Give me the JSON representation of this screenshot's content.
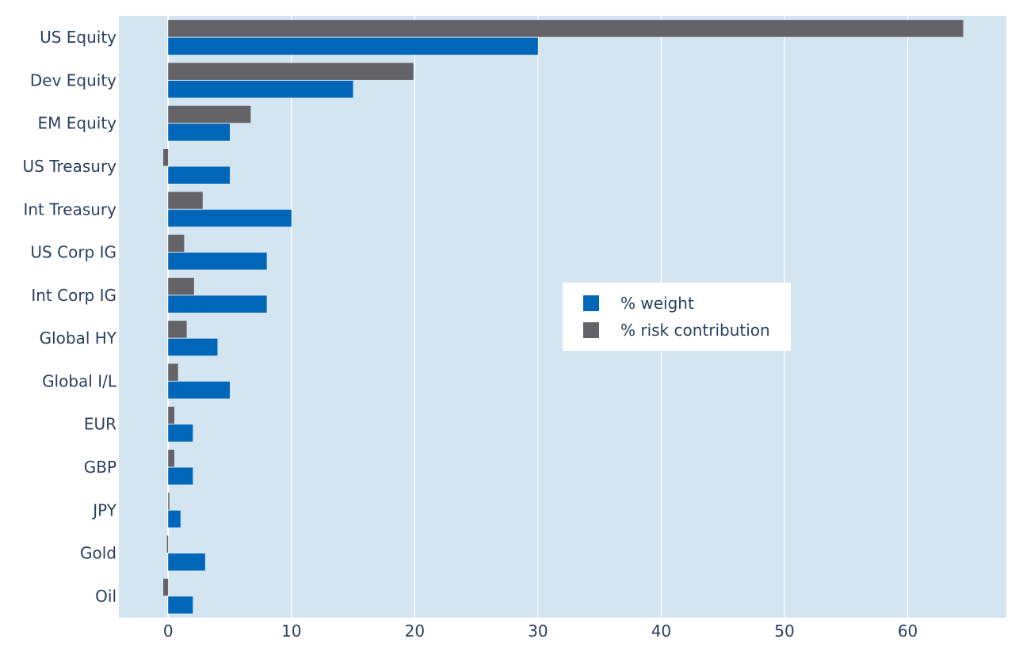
{
  "chart_data": {
    "type": "bar",
    "orientation": "horizontal",
    "categories": [
      "US Equity",
      "Dev Equity",
      "EM Equity",
      "US Treasury",
      "Int Treasury",
      "US Corp IG",
      "Int Corp IG",
      "Global HY",
      "Global I/L",
      "EUR",
      "GBP",
      "JPY",
      "Gold",
      "Oil"
    ],
    "series": [
      {
        "name": "% weight",
        "color": "#0066b8",
        "values": [
          30,
          15,
          5,
          5,
          10,
          8,
          8,
          4,
          5,
          2,
          2,
          1,
          3,
          2
        ]
      },
      {
        "name": "% risk contribution",
        "color": "#646468",
        "values": [
          64.5,
          19.9,
          6.7,
          -0.4,
          2.8,
          1.3,
          2.1,
          1.5,
          0.8,
          0.5,
          0.5,
          0.1,
          -0.1,
          -0.4
        ]
      }
    ],
    "xlim": [
      -4,
      68
    ],
    "xticks": [
      0,
      10,
      20,
      30,
      40,
      50,
      60
    ],
    "grid": true,
    "legend_position": "center-right",
    "title": "",
    "xlabel": "",
    "ylabel": "",
    "colors": {
      "plot_background": "#d4e5f2",
      "grid": "#ffffff",
      "text": "#2a3f5f"
    }
  }
}
